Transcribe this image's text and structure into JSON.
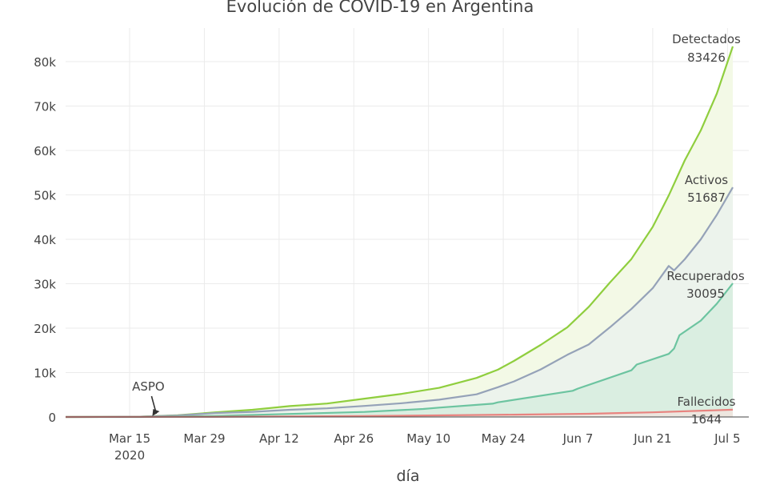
{
  "chart_data": {
    "type": "area",
    "title": "Evolución de COVID-19 en Argentina",
    "xlabel": "día",
    "ylabel": "",
    "x_range": [
      "2020-03-03",
      "2020-07-09"
    ],
    "ylim": [
      -1500,
      87000
    ],
    "grid": true,
    "x_ticks": [
      {
        "date": "2020-03-15",
        "label": "Mar 15",
        "sublabel": "2020"
      },
      {
        "date": "2020-03-29",
        "label": "Mar 29"
      },
      {
        "date": "2020-04-12",
        "label": "Apr 12"
      },
      {
        "date": "2020-04-26",
        "label": "Apr 26"
      },
      {
        "date": "2020-05-10",
        "label": "May 10"
      },
      {
        "date": "2020-05-24",
        "label": "May 24"
      },
      {
        "date": "2020-06-07",
        "label": "Jun 7"
      },
      {
        "date": "2020-06-21",
        "label": "Jun 21"
      },
      {
        "date": "2020-07-05",
        "label": "Jul 5"
      }
    ],
    "y_ticks": [
      {
        "value": 0,
        "label": "0"
      },
      {
        "value": 10000,
        "label": "10k"
      },
      {
        "value": 20000,
        "label": "20k"
      },
      {
        "value": 30000,
        "label": "30k"
      },
      {
        "value": 40000,
        "label": "40k"
      },
      {
        "value": 50000,
        "label": "50k"
      },
      {
        "value": 60000,
        "label": "60k"
      },
      {
        "value": 70000,
        "label": "70k"
      },
      {
        "value": 80000,
        "label": "80k"
      }
    ],
    "annotations": [
      {
        "text": "ASPO",
        "date": "2020-03-20",
        "value": 0,
        "arrow": true
      }
    ],
    "series": [
      {
        "name": "Detectados",
        "end_label": "83426",
        "color": "#8fce3e",
        "fill": "#f3f9e6",
        "x": [
          "2020-03-03",
          "2020-03-10",
          "2020-03-17",
          "2020-03-24",
          "2020-03-31",
          "2020-04-07",
          "2020-04-14",
          "2020-04-21",
          "2020-04-28",
          "2020-05-05",
          "2020-05-12",
          "2020-05-19",
          "2020-05-23",
          "2020-05-26",
          "2020-05-31",
          "2020-06-05",
          "2020-06-09",
          "2020-06-13",
          "2020-06-17",
          "2020-06-21",
          "2020-06-24",
          "2020-06-27",
          "2020-06-30",
          "2020-07-03",
          "2020-07-06"
        ],
        "values": [
          1,
          19,
          79,
          387,
          1054,
          1628,
          2443,
          3031,
          4127,
          5208,
          6563,
          8796,
          10649,
          12615,
          16214,
          20197,
          24761,
          30295,
          35552,
          42785,
          49851,
          57744,
          64530,
          72786,
          83426
        ]
      },
      {
        "name": "Activos",
        "end_label": "51687",
        "color": "#95a2b8",
        "fill": "#ecf3ec",
        "x": [
          "2020-03-03",
          "2020-03-10",
          "2020-03-17",
          "2020-03-24",
          "2020-03-31",
          "2020-04-07",
          "2020-04-14",
          "2020-04-21",
          "2020-04-28",
          "2020-05-05",
          "2020-05-12",
          "2020-05-19",
          "2020-05-23",
          "2020-05-26",
          "2020-05-31",
          "2020-06-05",
          "2020-06-09",
          "2020-06-13",
          "2020-06-17",
          "2020-06-21",
          "2020-06-24",
          "2020-06-25",
          "2020-06-27",
          "2020-06-30",
          "2020-07-03",
          "2020-07-06"
        ],
        "values": [
          1,
          17,
          70,
          340,
          890,
          1150,
          1620,
          1950,
          2480,
          3100,
          3900,
          5100,
          6700,
          8000,
          10700,
          14000,
          16300,
          20200,
          24300,
          29000,
          34000,
          33000,
          35500,
          40000,
          45500,
          51687
        ]
      },
      {
        "name": "Recuperados",
        "end_label": "30095",
        "color": "#6cc4a0",
        "fill": "#daeee1",
        "x": [
          "2020-03-03",
          "2020-03-17",
          "2020-03-31",
          "2020-04-14",
          "2020-04-28",
          "2020-05-09",
          "2020-05-12",
          "2020-05-22",
          "2020-05-23",
          "2020-06-06",
          "2020-06-07",
          "2020-06-17",
          "2020-06-18",
          "2020-06-24",
          "2020-06-25",
          "2020-06-26",
          "2020-06-30",
          "2020-07-03",
          "2020-07-06"
        ],
        "values": [
          0,
          3,
          228,
          685,
          1140,
          1800,
          2100,
          3000,
          3300,
          5900,
          6400,
          10500,
          11800,
          14200,
          15400,
          18400,
          21700,
          25500,
          30095
        ]
      },
      {
        "name": "Fallecidos",
        "end_label": "1644",
        "color": "#e8837f",
        "fill": "#ede6df",
        "x": [
          "2020-03-03",
          "2020-03-31",
          "2020-04-28",
          "2020-05-26",
          "2020-06-09",
          "2020-06-21",
          "2020-07-06"
        ],
        "values": [
          0,
          31,
          207,
          528,
          717,
          1041,
          1644
        ]
      }
    ]
  }
}
